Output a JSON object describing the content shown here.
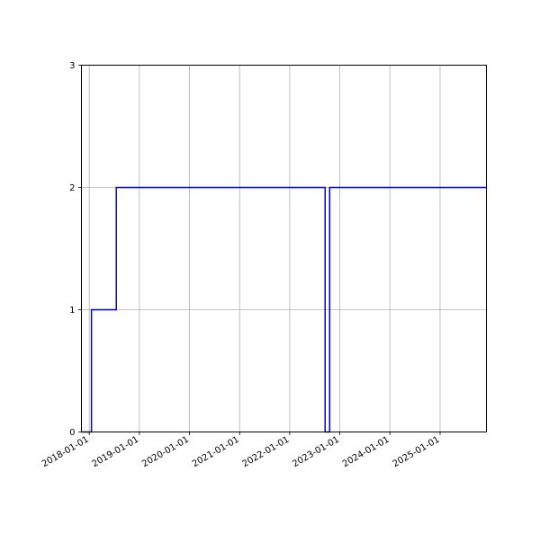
{
  "chart_data": {
    "type": "line",
    "step": "post",
    "title": "",
    "xlabel": "",
    "ylabel": "",
    "x_type": "date",
    "xlim": [
      "2017-11-05",
      "2025-12-05"
    ],
    "ylim": [
      0,
      3
    ],
    "grid": true,
    "x_ticks": [
      "2018-01-01",
      "2019-01-01",
      "2020-01-01",
      "2021-01-01",
      "2022-01-01",
      "2023-01-01",
      "2024-01-01",
      "2025-01-01"
    ],
    "y_ticks": [
      0,
      1,
      2,
      3
    ],
    "series": [
      {
        "color": "#0000ff",
        "x": [
          "2017-11-05",
          "2018-01-17",
          "2018-07-17",
          "2022-09-16",
          "2022-10-19",
          "2025-12-05"
        ],
        "y": [
          0,
          1,
          2,
          0,
          2,
          2
        ]
      }
    ]
  }
}
